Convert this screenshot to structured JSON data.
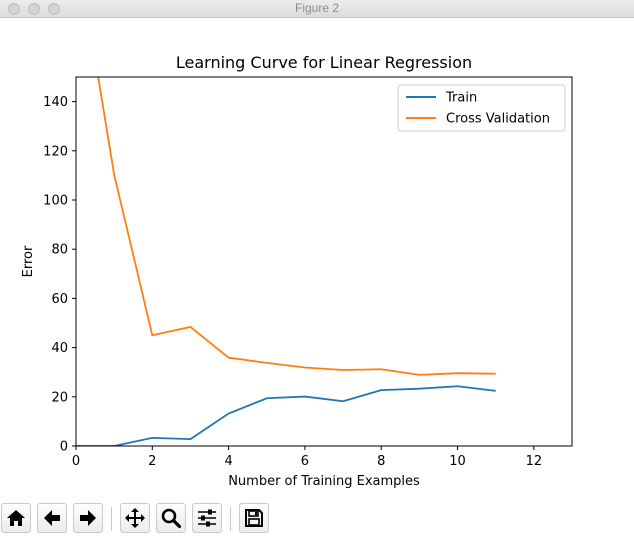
{
  "window": {
    "title": "Figure 2"
  },
  "chart_data": {
    "type": "line",
    "title": "Learning Curve for Linear Regression",
    "xlabel": "Number of Training Examples",
    "ylabel": "Error",
    "xlim": [
      0,
      13
    ],
    "ylim": [
      0,
      150
    ],
    "xticks": [
      0,
      2,
      4,
      6,
      8,
      10,
      12
    ],
    "yticks": [
      0,
      20,
      40,
      60,
      80,
      100,
      120,
      140
    ],
    "legend": "top-right",
    "series": [
      {
        "name": "Train",
        "color": "#1f77b4",
        "x": [
          0,
          1,
          2,
          3,
          4,
          5,
          6,
          7,
          8,
          9,
          10,
          11
        ],
        "y": [
          0,
          0,
          3.3,
          2.8,
          13.2,
          19.4,
          20.1,
          18.2,
          22.7,
          23.3,
          24.3,
          22.4
        ]
      },
      {
        "name": "Cross Validation",
        "color": "#ff7f0e",
        "x": [
          0,
          1,
          2,
          3,
          4,
          5,
          6,
          7,
          8,
          9,
          10,
          11
        ],
        "y": [
          205.1,
          110.3,
          45.0,
          48.4,
          35.9,
          33.8,
          31.9,
          30.9,
          31.2,
          28.9,
          29.6,
          29.4
        ]
      }
    ]
  },
  "toolbar": {
    "buttons": [
      {
        "name": "home-button",
        "icon": "home-icon"
      },
      {
        "name": "back-button",
        "icon": "arrow-left-icon"
      },
      {
        "name": "forward-button",
        "icon": "arrow-right-icon"
      },
      {
        "name": "pan-button",
        "icon": "move-icon"
      },
      {
        "name": "zoom-button",
        "icon": "magnifier-icon"
      },
      {
        "name": "configure-subplots-button",
        "icon": "sliders-icon"
      },
      {
        "name": "save-button",
        "icon": "floppy-disk-icon"
      }
    ]
  }
}
